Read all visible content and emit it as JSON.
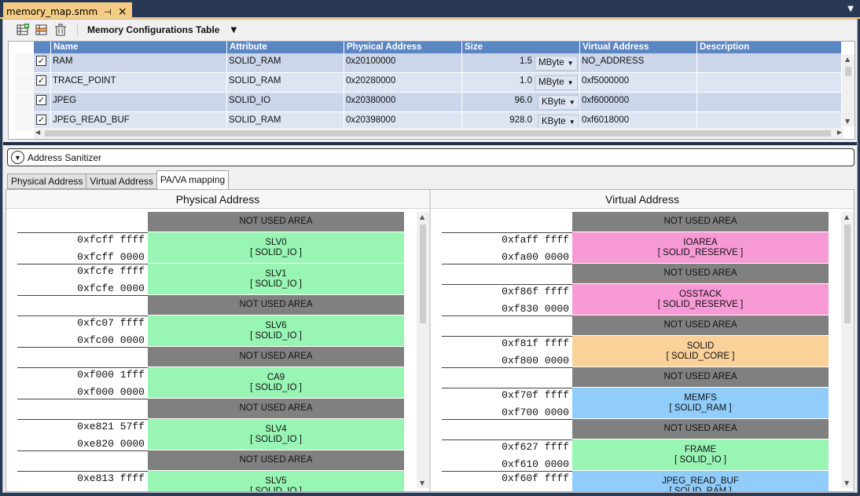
{
  "tab": {
    "title": "memory_map.smm",
    "pin": "⊣",
    "close": "×"
  },
  "toolbar": {
    "title": "Memory Configurations Table"
  },
  "grid": {
    "columns": [
      "Name",
      "Attribute",
      "Physical Address",
      "Size",
      "Virtual Address",
      "Description"
    ],
    "rows": [
      {
        "checked": true,
        "name": "RAM",
        "attribute": "SOLID_RAM",
        "pa": "0x20100000",
        "size": "1.5",
        "unit": "MByte",
        "va": "NO_ADDRESS",
        "desc": ""
      },
      {
        "checked": true,
        "name": "TRACE_POINT",
        "attribute": "SOLID_RAM",
        "pa": "0x20280000",
        "size": "1.0",
        "unit": "MByte",
        "va": "0xf5000000",
        "desc": ""
      },
      {
        "checked": true,
        "name": "JPEG",
        "attribute": "SOLID_IO",
        "pa": "0x20380000",
        "size": "96.0",
        "unit": "KByte",
        "va": "0xf6000000",
        "desc": ""
      },
      {
        "checked": true,
        "name": "JPEG_READ_BUF",
        "attribute": "SOLID_RAM",
        "pa": "0x20398000",
        "size": "928.0",
        "unit": "KByte",
        "va": "0xf6018000",
        "desc": ""
      }
    ]
  },
  "sanitizer": {
    "label": "Address Sanitizer"
  },
  "subtabs": [
    "Physical Address",
    "Virtual Address",
    "PA/VA mapping"
  ],
  "colors": {
    "unused": "#808080",
    "io": "#98f5b4",
    "reserve": "#f799d4",
    "core": "#fad198",
    "ram": "#90cdfa"
  },
  "physical": {
    "title": "Physical Address",
    "rows": [
      {
        "top": "",
        "bot": "",
        "name": "NOT USED AREA",
        "attr": "",
        "kind": "unused",
        "h": 26
      },
      {
        "top": "0xfcff ffff",
        "bot": "0xfcff 0000",
        "name": "SLV0",
        "attr": "[ SOLID_IO ]",
        "kind": "io",
        "h": 40
      },
      {
        "top": "0xfcfe ffff",
        "bot": "0xfcfe 0000",
        "name": "SLV1",
        "attr": "[ SOLID_IO ]",
        "kind": "io",
        "h": 40
      },
      {
        "top": "",
        "bot": "",
        "name": "NOT USED AREA",
        "attr": "",
        "kind": "unused",
        "h": 26
      },
      {
        "top": "0xfc07 ffff",
        "bot": "0xfc00 0000",
        "name": "SLV6",
        "attr": "[ SOLID_IO ]",
        "kind": "io",
        "h": 40
      },
      {
        "top": "",
        "bot": "",
        "name": "NOT USED AREA",
        "attr": "",
        "kind": "unused",
        "h": 26
      },
      {
        "top": "0xf000 1fff",
        "bot": "0xf000 0000",
        "name": "CA9",
        "attr": "[ SOLID_IO ]",
        "kind": "io",
        "h": 40
      },
      {
        "top": "",
        "bot": "",
        "name": "NOT USED AREA",
        "attr": "",
        "kind": "unused",
        "h": 26
      },
      {
        "top": "0xe821 57ff",
        "bot": "0xe820 0000",
        "name": "SLV4",
        "attr": "[ SOLID_IO ]",
        "kind": "io",
        "h": 40
      },
      {
        "top": "",
        "bot": "",
        "name": "NOT USED AREA",
        "attr": "",
        "kind": "unused",
        "h": 26
      },
      {
        "top": "0xe813 ffff",
        "bot": "",
        "name": "SLV5",
        "attr": "[ SOLID_IO ]",
        "kind": "io",
        "h": 40
      }
    ]
  },
  "virtual": {
    "title": "Virtual Address",
    "rows": [
      {
        "top": "",
        "bot": "",
        "name": "NOT USED AREA",
        "attr": "",
        "kind": "unused",
        "h": 26
      },
      {
        "top": "0xfaff ffff",
        "bot": "0xfa00 0000",
        "name": "IOAREA",
        "attr": "[ SOLID_RESERVE ]",
        "kind": "reserve",
        "h": 40
      },
      {
        "top": "",
        "bot": "",
        "name": "NOT USED AREA",
        "attr": "",
        "kind": "unused",
        "h": 26
      },
      {
        "top": "0xf86f ffff",
        "bot": "0xf830 0000",
        "name": "OSSTACK",
        "attr": "[ SOLID_RESERVE ]",
        "kind": "reserve",
        "h": 40
      },
      {
        "top": "",
        "bot": "",
        "name": "NOT USED AREA",
        "attr": "",
        "kind": "unused",
        "h": 26
      },
      {
        "top": "0xf81f ffff",
        "bot": "0xf800 0000",
        "name": "SOLID",
        "attr": "[ SOLID_CORE ]",
        "kind": "core",
        "h": 40
      },
      {
        "top": "",
        "bot": "",
        "name": "NOT USED AREA",
        "attr": "",
        "kind": "unused",
        "h": 26
      },
      {
        "top": "0xf70f ffff",
        "bot": "0xf700 0000",
        "name": "MEMFS",
        "attr": "[ SOLID_RAM ]",
        "kind": "ram",
        "h": 40
      },
      {
        "top": "",
        "bot": "",
        "name": "NOT USED AREA",
        "attr": "",
        "kind": "unused",
        "h": 26
      },
      {
        "top": "0xf627 ffff",
        "bot": "0xf610 0000",
        "name": "FRAME",
        "attr": "[ SOLID_IO ]",
        "kind": "io",
        "h": 40
      },
      {
        "top": "0xf60f ffff",
        "bot": "",
        "name": "JPEG_READ_BUF",
        "attr": "[ SOLID_RAM ]",
        "kind": "ram",
        "h": 40
      }
    ]
  }
}
